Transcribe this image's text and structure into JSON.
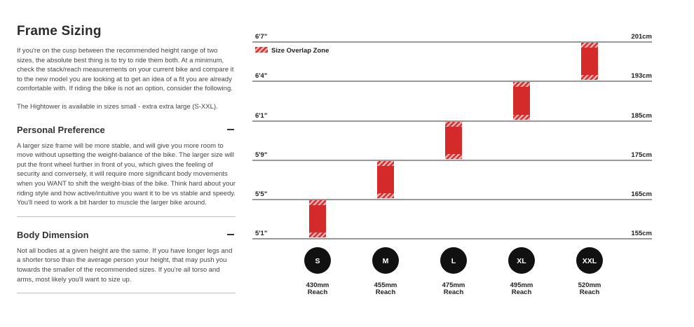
{
  "article": {
    "title": "Frame Sizing",
    "intro_1": "If you're on the cusp between the recommended height range of two sizes, the absolute best thing is to try to ride them both. At a minimum, check the stack/reach measurements on your current bike and compare it to the new model you are looking at to get an idea of a fit you are already comfortable with. If riding the bike is not an option, consider the following.",
    "intro_2": "The Hightower is available in sizes small - extra extra large (S-XXL).",
    "sections": [
      {
        "title": "Personal Preference",
        "body": "A larger size frame will be more stable, and will give you more room to move without upsetting the weight-balance of the bike. The larger size will put the front wheel further in front of you, which gives the feeling of security and conversely, it will require more significant body movements when you WANT to shift the weight-bias of the bike. Think hard about your riding style and how active/intuitive you want it to be vs stable and speedy. You'll need to work a bit harder to muscle the larger bike around."
      },
      {
        "title": "Body Dimension",
        "body": "Not all bodies at a given height are the same. If you have longer legs and a shorter torso than the average person your height, that may push you towards the smaller of the recommended sizes. If you're all torso and arms, most likely you'll want to size up."
      }
    ]
  },
  "chart_data": {
    "type": "bar",
    "legend": "Size Overlap Zone",
    "legend_position": "top-left",
    "colors": {
      "bar": "#d42a2a",
      "hatch": "#f3b0b0",
      "grid": "#333333",
      "circle": "#111111"
    },
    "y_unit": "cm",
    "ylim": [
      155,
      201
    ],
    "gridlines": [
      {
        "value": 201,
        "left": "6'7\"",
        "right": "201cm"
      },
      {
        "value": 193,
        "left": "6'4\"",
        "right": "193cm"
      },
      {
        "value": 185,
        "left": "6'1\"",
        "right": "185cm"
      },
      {
        "value": 175,
        "left": "5'9\"",
        "right": "175cm"
      },
      {
        "value": 165,
        "left": "5'5\"",
        "right": "165cm"
      },
      {
        "value": 155,
        "left": "5'1\"",
        "right": "155cm"
      }
    ],
    "categories": [
      "S",
      "M",
      "L",
      "XL",
      "XXL"
    ],
    "series": [
      {
        "ranges": [
          [
            155,
            165
          ],
          [
            165,
            175
          ],
          [
            175,
            185
          ],
          [
            185,
            193
          ],
          [
            193,
            201
          ]
        ]
      }
    ],
    "reach": [
      "430mm",
      "455mm",
      "475mm",
      "495mm",
      "520mm"
    ],
    "reach_label": "Reach"
  }
}
